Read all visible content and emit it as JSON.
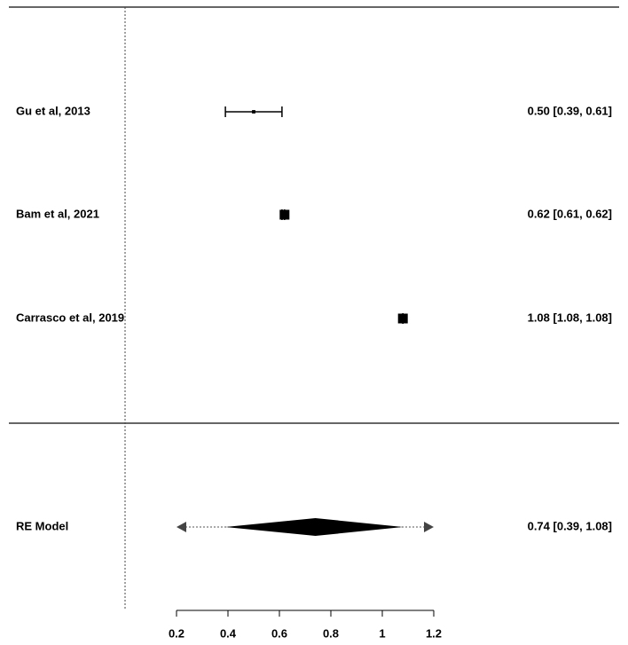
{
  "chart_data": {
    "type": "forest",
    "studies": {
      "labels": [
        "Gu et al, 2013",
        "Bam et  al, 2021",
        "Carrasco et al, 2019"
      ],
      "estimates": [
        0.5,
        0.62,
        1.08
      ],
      "lower": [
        0.39,
        0.61,
        1.08
      ],
      "upper": [
        0.61,
        0.62,
        1.08
      ],
      "weights": [
        2,
        49,
        49
      ],
      "value_labels": [
        "0.50 [0.39, 0.61]",
        "0.62 [0.61, 0.62]",
        "1.08 [1.08, 1.08]"
      ]
    },
    "summary": {
      "label": "RE Model",
      "estimate": 0.74,
      "lower": 0.39,
      "upper": 1.08,
      "value_label": "0.74 [0.39, 1.08]"
    },
    "xlim": [
      0.2,
      1.2
    ],
    "xticks": [
      0.2,
      0.4,
      0.6,
      0.8,
      1,
      1.2
    ],
    "refline": 0,
    "color": "#000000"
  }
}
